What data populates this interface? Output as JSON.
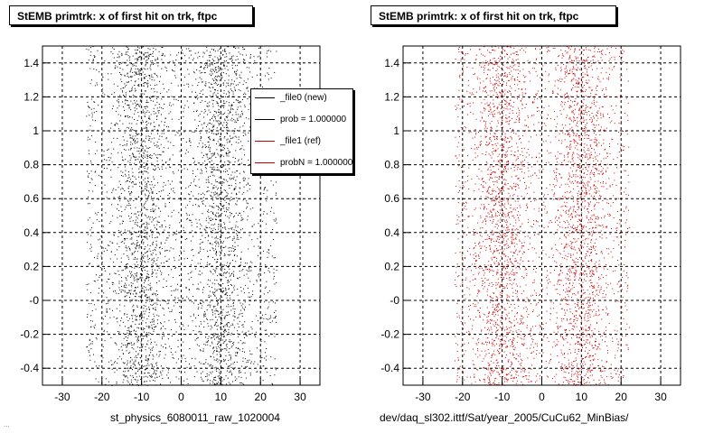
{
  "footer_note": "...",
  "chart_data": [
    {
      "type": "scatter",
      "title": "StEMB primtrk: x of first hit on trk, ftpc",
      "xlabel": "st_physics_6080011_raw_1020004",
      "ylabel": "",
      "xlim": [
        -35,
        35
      ],
      "ylim": [
        -0.5,
        1.5
      ],
      "xticks": [
        -30,
        -20,
        -10,
        0,
        10,
        20,
        30
      ],
      "yticks": [
        -0.4,
        -0.2,
        0,
        0.2,
        0.4,
        0.6,
        0.8,
        1,
        1.2,
        1.4
      ],
      "ytick_labels": [
        "-0.4",
        "-0.2",
        "-0",
        "0.2",
        "0.4",
        "0.6",
        "0.8",
        "1",
        "1.2",
        "1.4"
      ],
      "grid": true,
      "marker_color": "#000000",
      "x_extent": [
        -24,
        24
      ],
      "dense_bands": [
        -10,
        10
      ],
      "legend": {
        "placement": "top-right",
        "entries": [
          {
            "label": "_file0 (new)",
            "color": "#000000"
          },
          {
            "label": "prob = 1.000000",
            "color": "#000000"
          },
          {
            "label": "_file1 (ref)",
            "color": "#cc0000"
          },
          {
            "label": "probN = 1.000000",
            "color": "#cc0000"
          }
        ]
      }
    },
    {
      "type": "scatter",
      "title": "StEMB primtrk: x of first hit on trk, ftpc",
      "xlabel": "dev/daq_sl302.ittf/Sat/year_2005/CuCu62_MinBias/",
      "ylabel": "",
      "xlim": [
        -35,
        35
      ],
      "ylim": [
        -0.5,
        1.5
      ],
      "xticks": [
        -30,
        -20,
        -10,
        0,
        10,
        20,
        30
      ],
      "yticks": [
        -0.4,
        -0.2,
        0,
        0.2,
        0.4,
        0.6,
        0.8,
        1,
        1.2,
        1.4
      ],
      "ytick_labels": [
        "-0.4",
        "-0.2",
        "-0",
        "0.2",
        "0.4",
        "0.6",
        "0.8",
        "1",
        "1.2",
        "1.4"
      ],
      "grid": true,
      "marker_color": "#cc0000",
      "x_extent": [
        -22,
        22
      ],
      "dense_bands": [
        -10,
        10
      ]
    }
  ]
}
